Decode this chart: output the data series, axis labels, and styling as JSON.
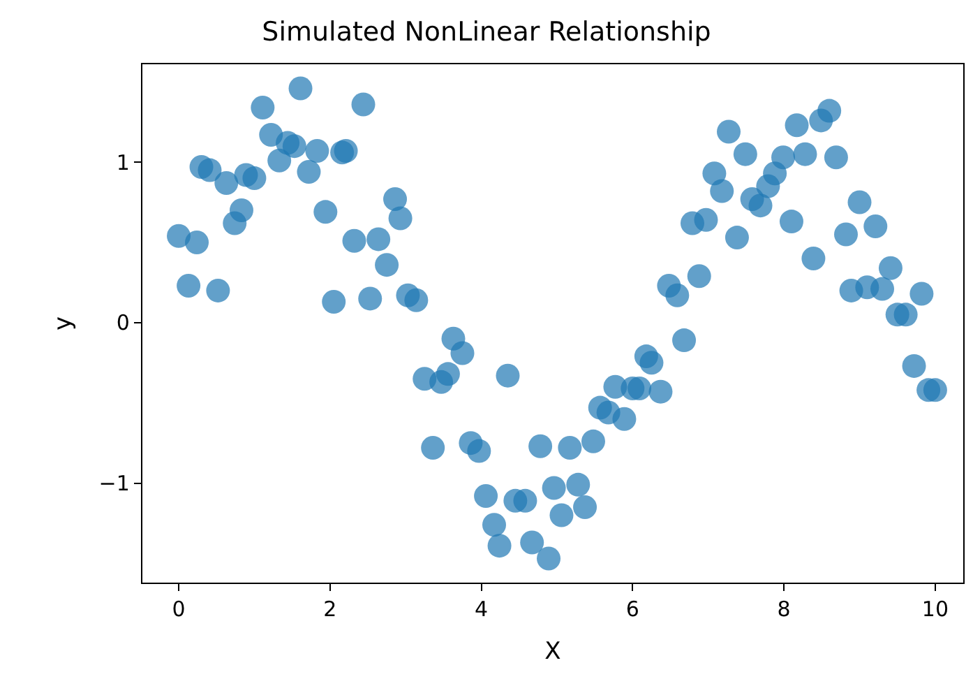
{
  "chart_data": {
    "type": "scatter",
    "title": "Simulated NonLinear Relationship",
    "xlabel": "X",
    "ylabel": "y",
    "xlim": [
      -0.48,
      10.37
    ],
    "ylim": [
      -1.62,
      1.61
    ],
    "xticks": [
      0,
      2,
      4,
      6,
      8,
      10
    ],
    "yticks": [
      -1,
      0,
      1
    ],
    "marker": "circle",
    "series": [
      {
        "color": "#1f77b4",
        "x": [
          0,
          0.13,
          0.24,
          0.3,
          0.41,
          0.52,
          0.63,
          0.74,
          0.83,
          0.89,
          1.0,
          1.11,
          1.22,
          1.33,
          1.44,
          1.53,
          1.61,
          1.72,
          1.83,
          1.94,
          2.05,
          2.16,
          2.21,
          2.32,
          2.44,
          2.53,
          2.64,
          2.75,
          2.86,
          2.93,
          3.03,
          3.14,
          3.25,
          3.36,
          3.47,
          3.56,
          3.63,
          3.75,
          3.86,
          3.97,
          4.06,
          4.17,
          4.24,
          4.35,
          4.45,
          4.58,
          4.67,
          4.78,
          4.89,
          4.96,
          5.06,
          5.17,
          5.28,
          5.37,
          5.48,
          5.57,
          5.68,
          5.77,
          5.89,
          6.0,
          6.09,
          6.18,
          6.25,
          6.37,
          6.48,
          6.59,
          6.68,
          6.79,
          6.88,
          6.97,
          7.08,
          7.18,
          7.27,
          7.38,
          7.49,
          7.58,
          7.69,
          7.79,
          7.88,
          7.99,
          8.1,
          8.17,
          8.28,
          8.39,
          8.49,
          8.6,
          8.69,
          8.82,
          8.89,
          9.0,
          9.1,
          9.21,
          9.3,
          9.41,
          9.5,
          9.61,
          9.72,
          9.82,
          9.91,
          10.0
        ],
        "values": [
          0.54,
          0.23,
          0.5,
          0.97,
          0.95,
          0.2,
          0.87,
          0.62,
          0.7,
          0.92,
          0.9,
          1.34,
          1.17,
          1.01,
          1.12,
          1.1,
          1.46,
          0.94,
          1.07,
          0.69,
          0.13,
          1.06,
          1.07,
          0.51,
          1.36,
          0.15,
          0.52,
          0.36,
          0.77,
          0.65,
          0.17,
          0.14,
          -0.35,
          -0.78,
          -0.37,
          -0.32,
          -0.1,
          -0.19,
          -0.75,
          -0.8,
          -1.08,
          -1.26,
          -1.39,
          -0.33,
          -1.11,
          -1.11,
          -1.37,
          -0.77,
          -1.47,
          -1.03,
          -1.2,
          -0.78,
          -1.01,
          -1.15,
          -0.74,
          -0.53,
          -0.56,
          -0.4,
          -0.6,
          -0.41,
          -0.41,
          -0.21,
          -0.25,
          -0.43,
          0.23,
          0.17,
          -0.11,
          0.62,
          0.29,
          0.64,
          0.93,
          0.82,
          1.19,
          0.53,
          1.05,
          0.77,
          0.73,
          0.85,
          0.93,
          1.03,
          0.63,
          1.23,
          1.05,
          0.4,
          1.26,
          1.32,
          1.03,
          0.55,
          0.2,
          0.75,
          0.22,
          0.6,
          0.21,
          0.34,
          0.05,
          0.05,
          -0.27,
          0.18,
          -0.42,
          -0.42
        ]
      }
    ]
  }
}
